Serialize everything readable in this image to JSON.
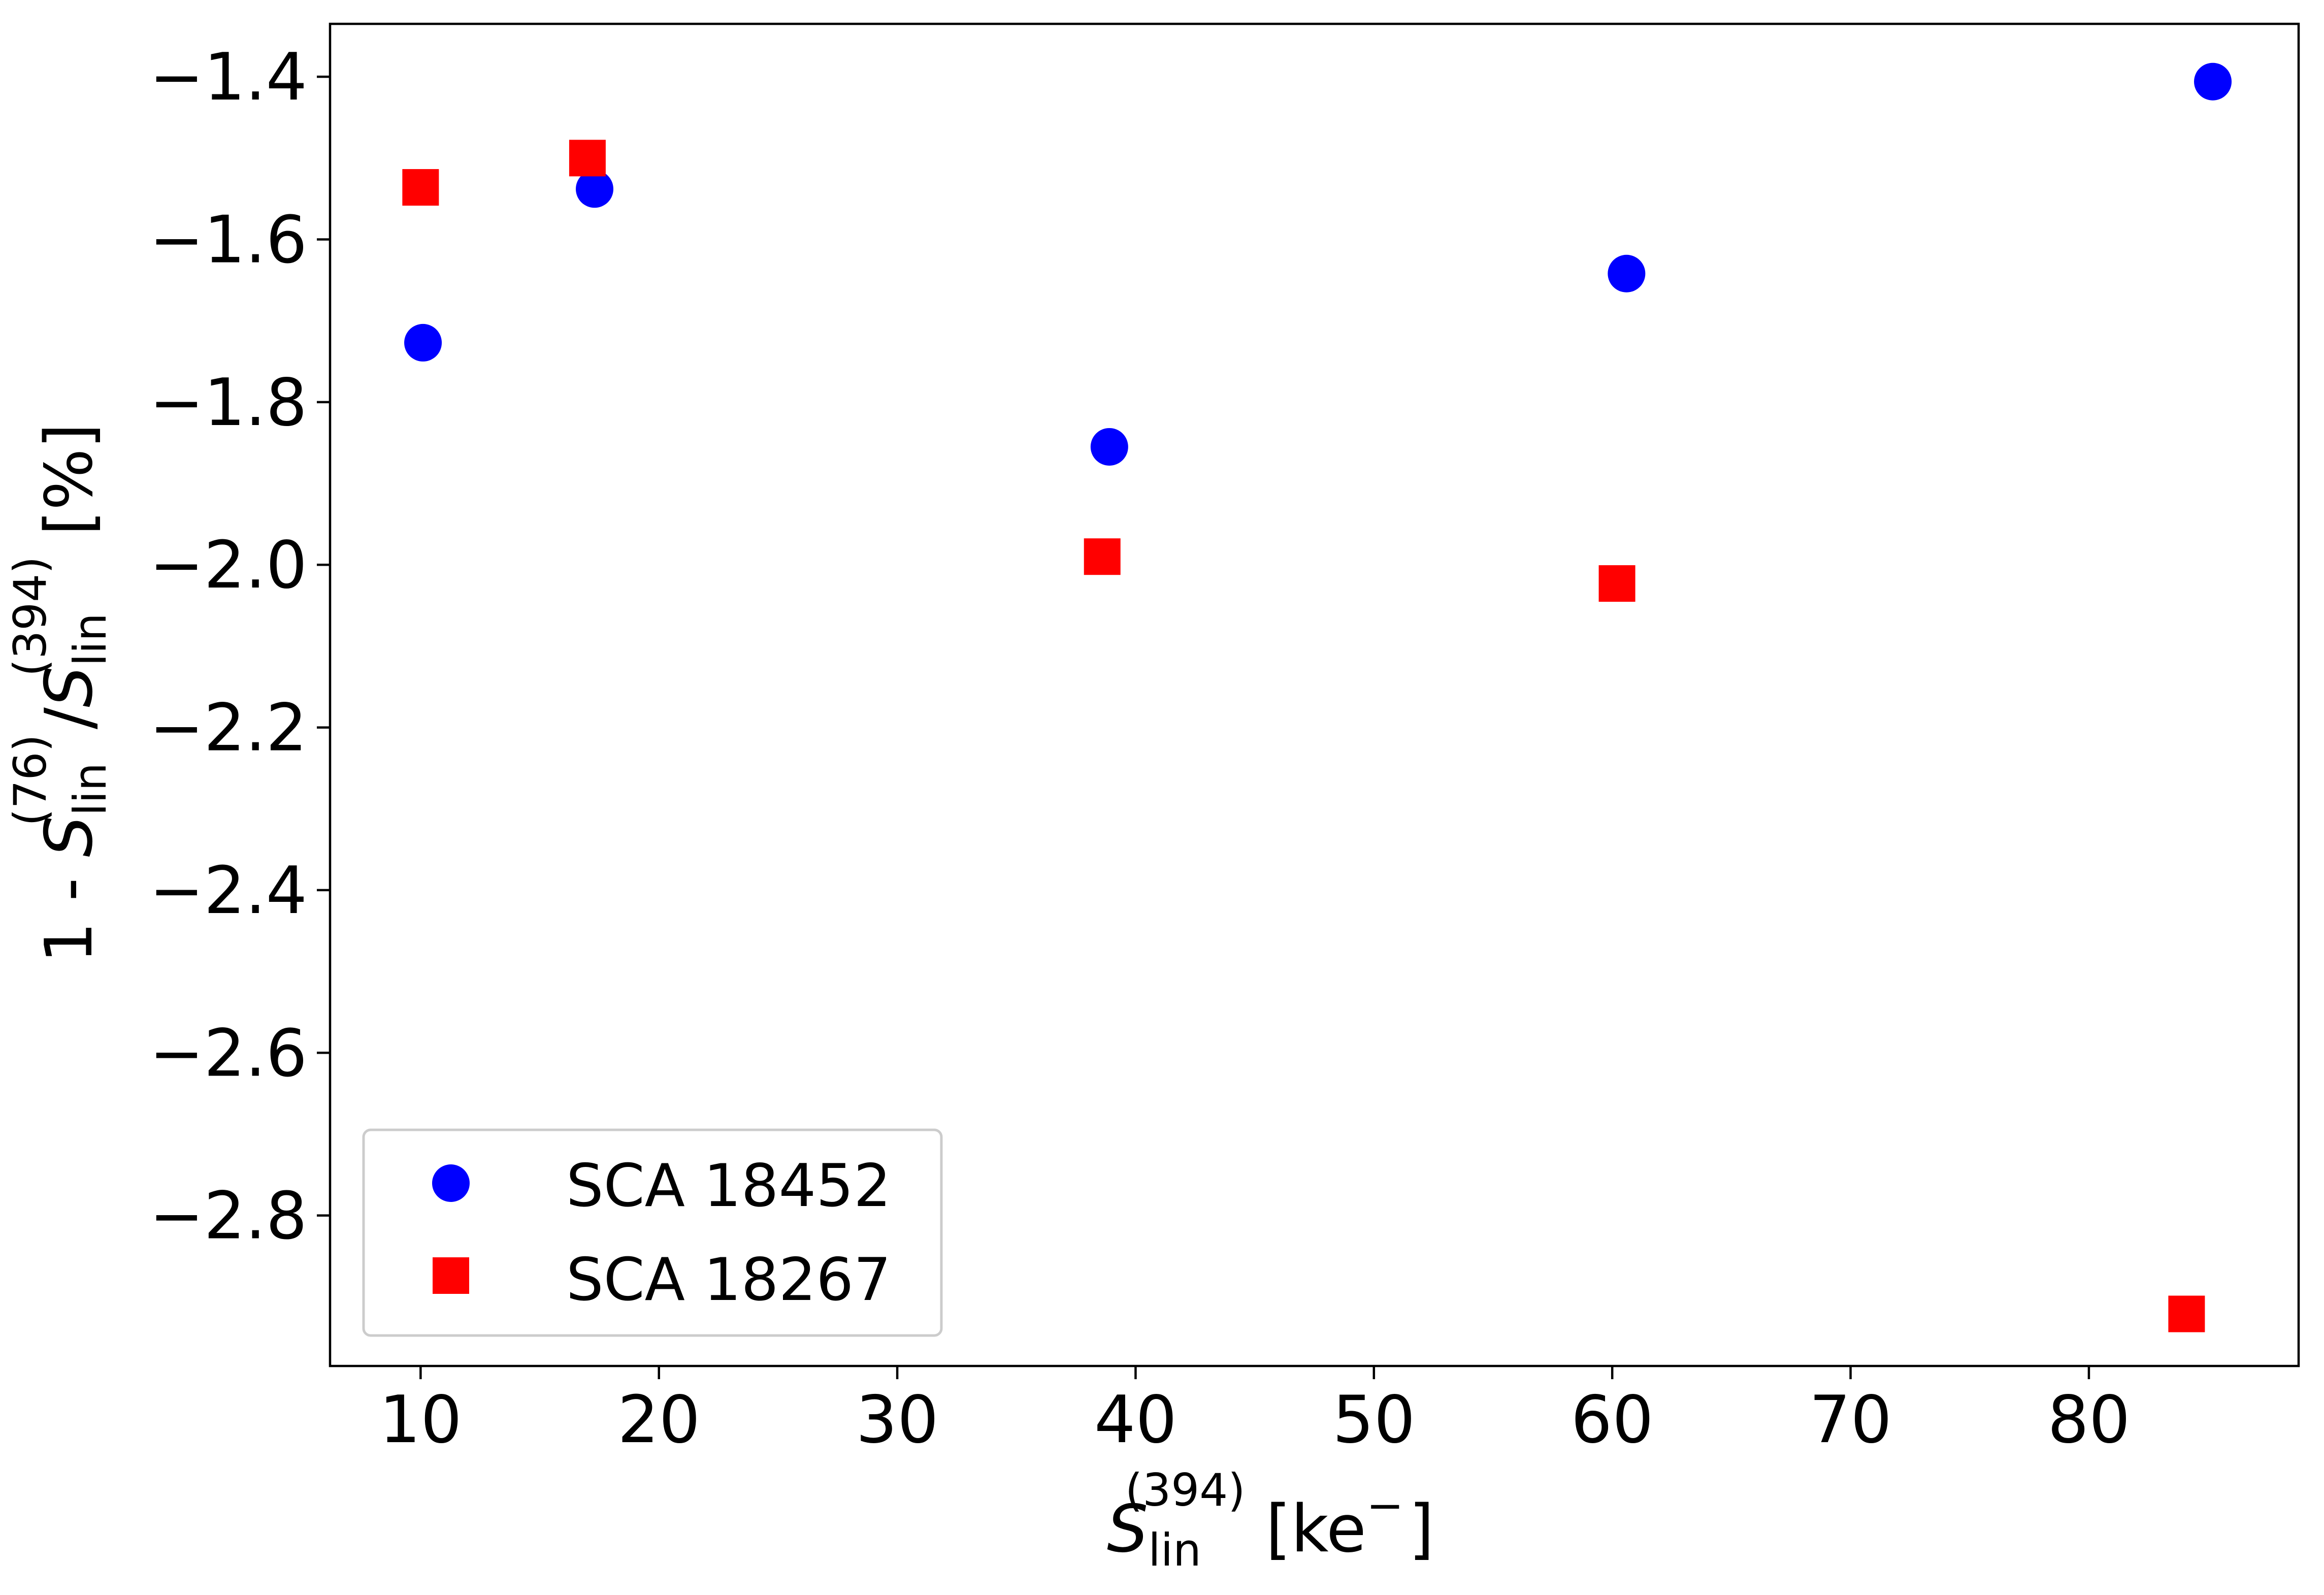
{
  "chart_data": {
    "type": "scatter",
    "xlabel": {
      "main": "S",
      "sub": "lin",
      "sup": "(394)",
      "unit": "[ke",
      "unit_sup": "−",
      "unit_close": "]"
    },
    "ylabel": {
      "prefix": "1 - ",
      "num_main": "S",
      "num_sub": "lin",
      "num_sup": "(76)",
      "slash": "/",
      "den_main": "S",
      "den_sub": "lin",
      "den_sup": "(394)",
      "unit": " [%]"
    },
    "xlim": [
      6.2,
      88.8
    ],
    "ylim": [
      -2.985,
      -1.335
    ],
    "x_ticks": [
      10,
      20,
      30,
      40,
      50,
      60,
      70,
      80
    ],
    "x_tick_labels": [
      "10",
      "20",
      "30",
      "40",
      "50",
      "60",
      "70",
      "80"
    ],
    "y_ticks": [
      -1.4,
      -1.6,
      -1.8,
      -2.0,
      -2.2,
      -2.4,
      -2.6,
      -2.8
    ],
    "y_tick_labels": [
      "−1.4",
      "−1.6",
      "−1.8",
      "−2.0",
      "−2.2",
      "−2.4",
      "−2.6",
      "−2.8"
    ],
    "grid": false,
    "legend_position": "lower-left",
    "series": [
      {
        "name": "SCA 18452",
        "marker": "circle",
        "color": "#0000ff",
        "points": [
          {
            "x": 10.1,
            "y": -1.727
          },
          {
            "x": 17.3,
            "y": -1.538
          },
          {
            "x": 38.9,
            "y": -1.855
          },
          {
            "x": 60.6,
            "y": -1.642
          },
          {
            "x": 85.2,
            "y": -1.406
          }
        ]
      },
      {
        "name": "SCA 18267",
        "marker": "square",
        "color": "#ff0000",
        "points": [
          {
            "x": 10.0,
            "y": -1.536
          },
          {
            "x": 17.0,
            "y": -1.5
          },
          {
            "x": 38.6,
            "y": -1.99
          },
          {
            "x": 60.2,
            "y": -2.023
          },
          {
            "x": 84.1,
            "y": -2.921
          }
        ]
      }
    ]
  }
}
